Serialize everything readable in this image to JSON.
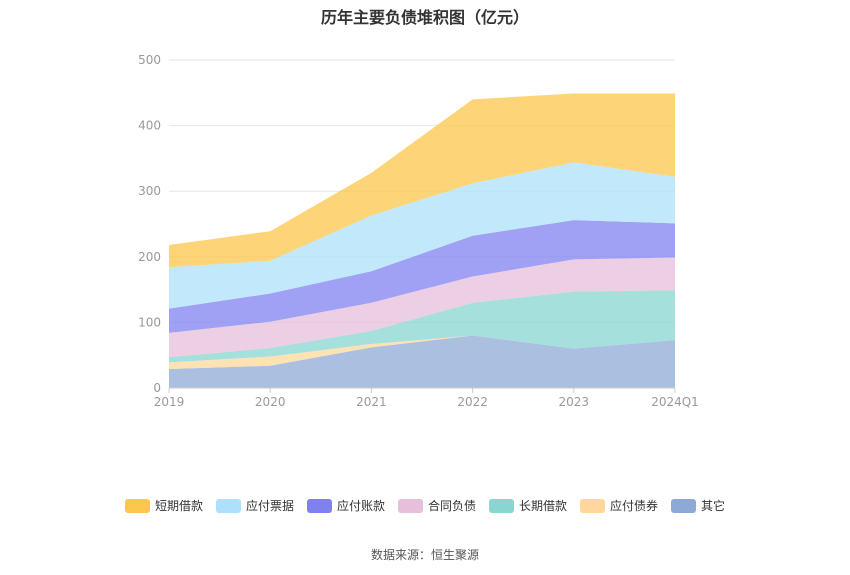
{
  "title": "历年主要负债堆积图（亿元）",
  "source": "数据来源：恒生聚源",
  "chart_data": {
    "type": "area",
    "stacked": true,
    "categories": [
      "2019",
      "2020",
      "2021",
      "2022",
      "2023",
      "2024Q1"
    ],
    "ylim": [
      0,
      500
    ],
    "yticks": [
      0,
      100,
      200,
      300,
      400,
      500
    ],
    "grid": true,
    "legend_position": "bottom",
    "series": [
      {
        "name": "其它",
        "color": "#8fa9d6",
        "values": [
          29,
          34,
          62,
          80,
          60,
          73
        ]
      },
      {
        "name": "应付债券",
        "color": "#fdd89a",
        "values": [
          10,
          14,
          5,
          0,
          0,
          0
        ]
      },
      {
        "name": "长期借款",
        "color": "#87d6d2",
        "values": [
          8,
          13,
          20,
          50,
          87,
          76
        ]
      },
      {
        "name": "合同负债",
        "color": "#e6bfdc",
        "values": [
          37,
          40,
          43,
          40,
          49,
          50
        ]
      },
      {
        "name": "应付账款",
        "color": "#8081f0",
        "values": [
          37,
          43,
          48,
          62,
          60,
          52
        ]
      },
      {
        "name": "应付票据",
        "color": "#aee0fb",
        "values": [
          63,
          50,
          85,
          80,
          88,
          71
        ]
      },
      {
        "name": "短期借款",
        "color": "#fdc64c",
        "values": [
          34,
          45,
          65,
          128,
          105,
          127
        ]
      }
    ]
  }
}
